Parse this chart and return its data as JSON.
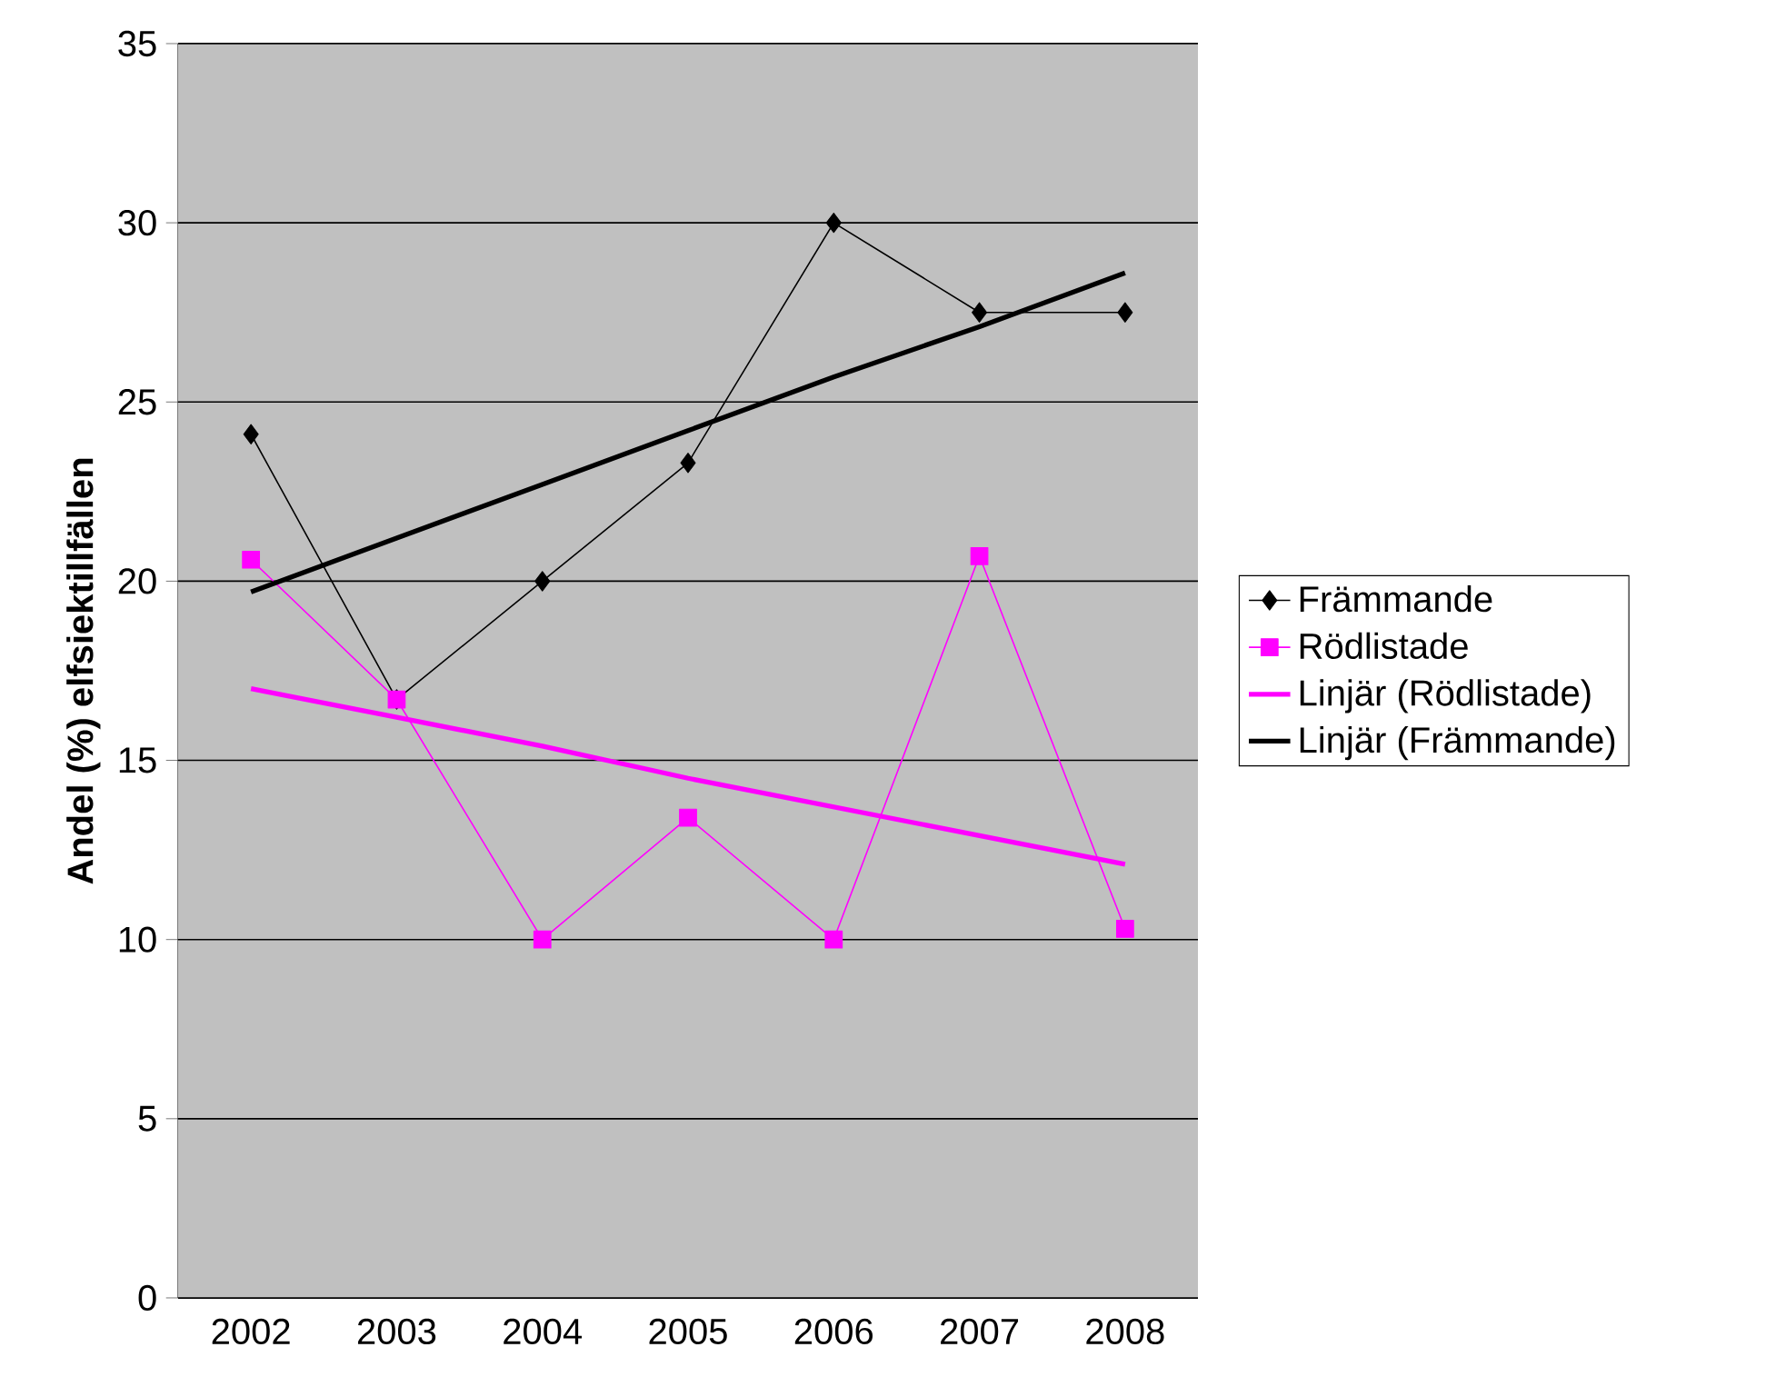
{
  "chart_data": {
    "type": "line",
    "ylabel": "Andel (%) elfsiektillfällen",
    "categories": [
      "2002",
      "2003",
      "2004",
      "2005",
      "2006",
      "2007",
      "2008"
    ],
    "series": [
      {
        "name": "Främmande",
        "color": "#000000",
        "marker": "diamond",
        "values": [
          24.1,
          16.7,
          20.0,
          23.3,
          30.0,
          27.5,
          27.5
        ]
      },
      {
        "name": "Rödlistade",
        "color": "#ff00ff",
        "marker": "square",
        "values": [
          20.6,
          16.7,
          10.0,
          13.4,
          10.0,
          20.7,
          10.3
        ]
      },
      {
        "name": "Linjär (Rödlistade)",
        "color": "#ff00ff",
        "marker": "none",
        "values": [
          17.0,
          16.2,
          15.4,
          14.5,
          13.7,
          12.9,
          12.1
        ]
      },
      {
        "name": "Linjär (Främmande)",
        "color": "#000000",
        "marker": "none",
        "values": [
          19.7,
          21.2,
          22.7,
          24.2,
          25.7,
          27.1,
          28.6
        ]
      }
    ],
    "ylim": [
      0,
      35
    ],
    "yticks": [
      0,
      5,
      10,
      15,
      20,
      25,
      30,
      35
    ],
    "grid": "y",
    "legend": "right"
  }
}
